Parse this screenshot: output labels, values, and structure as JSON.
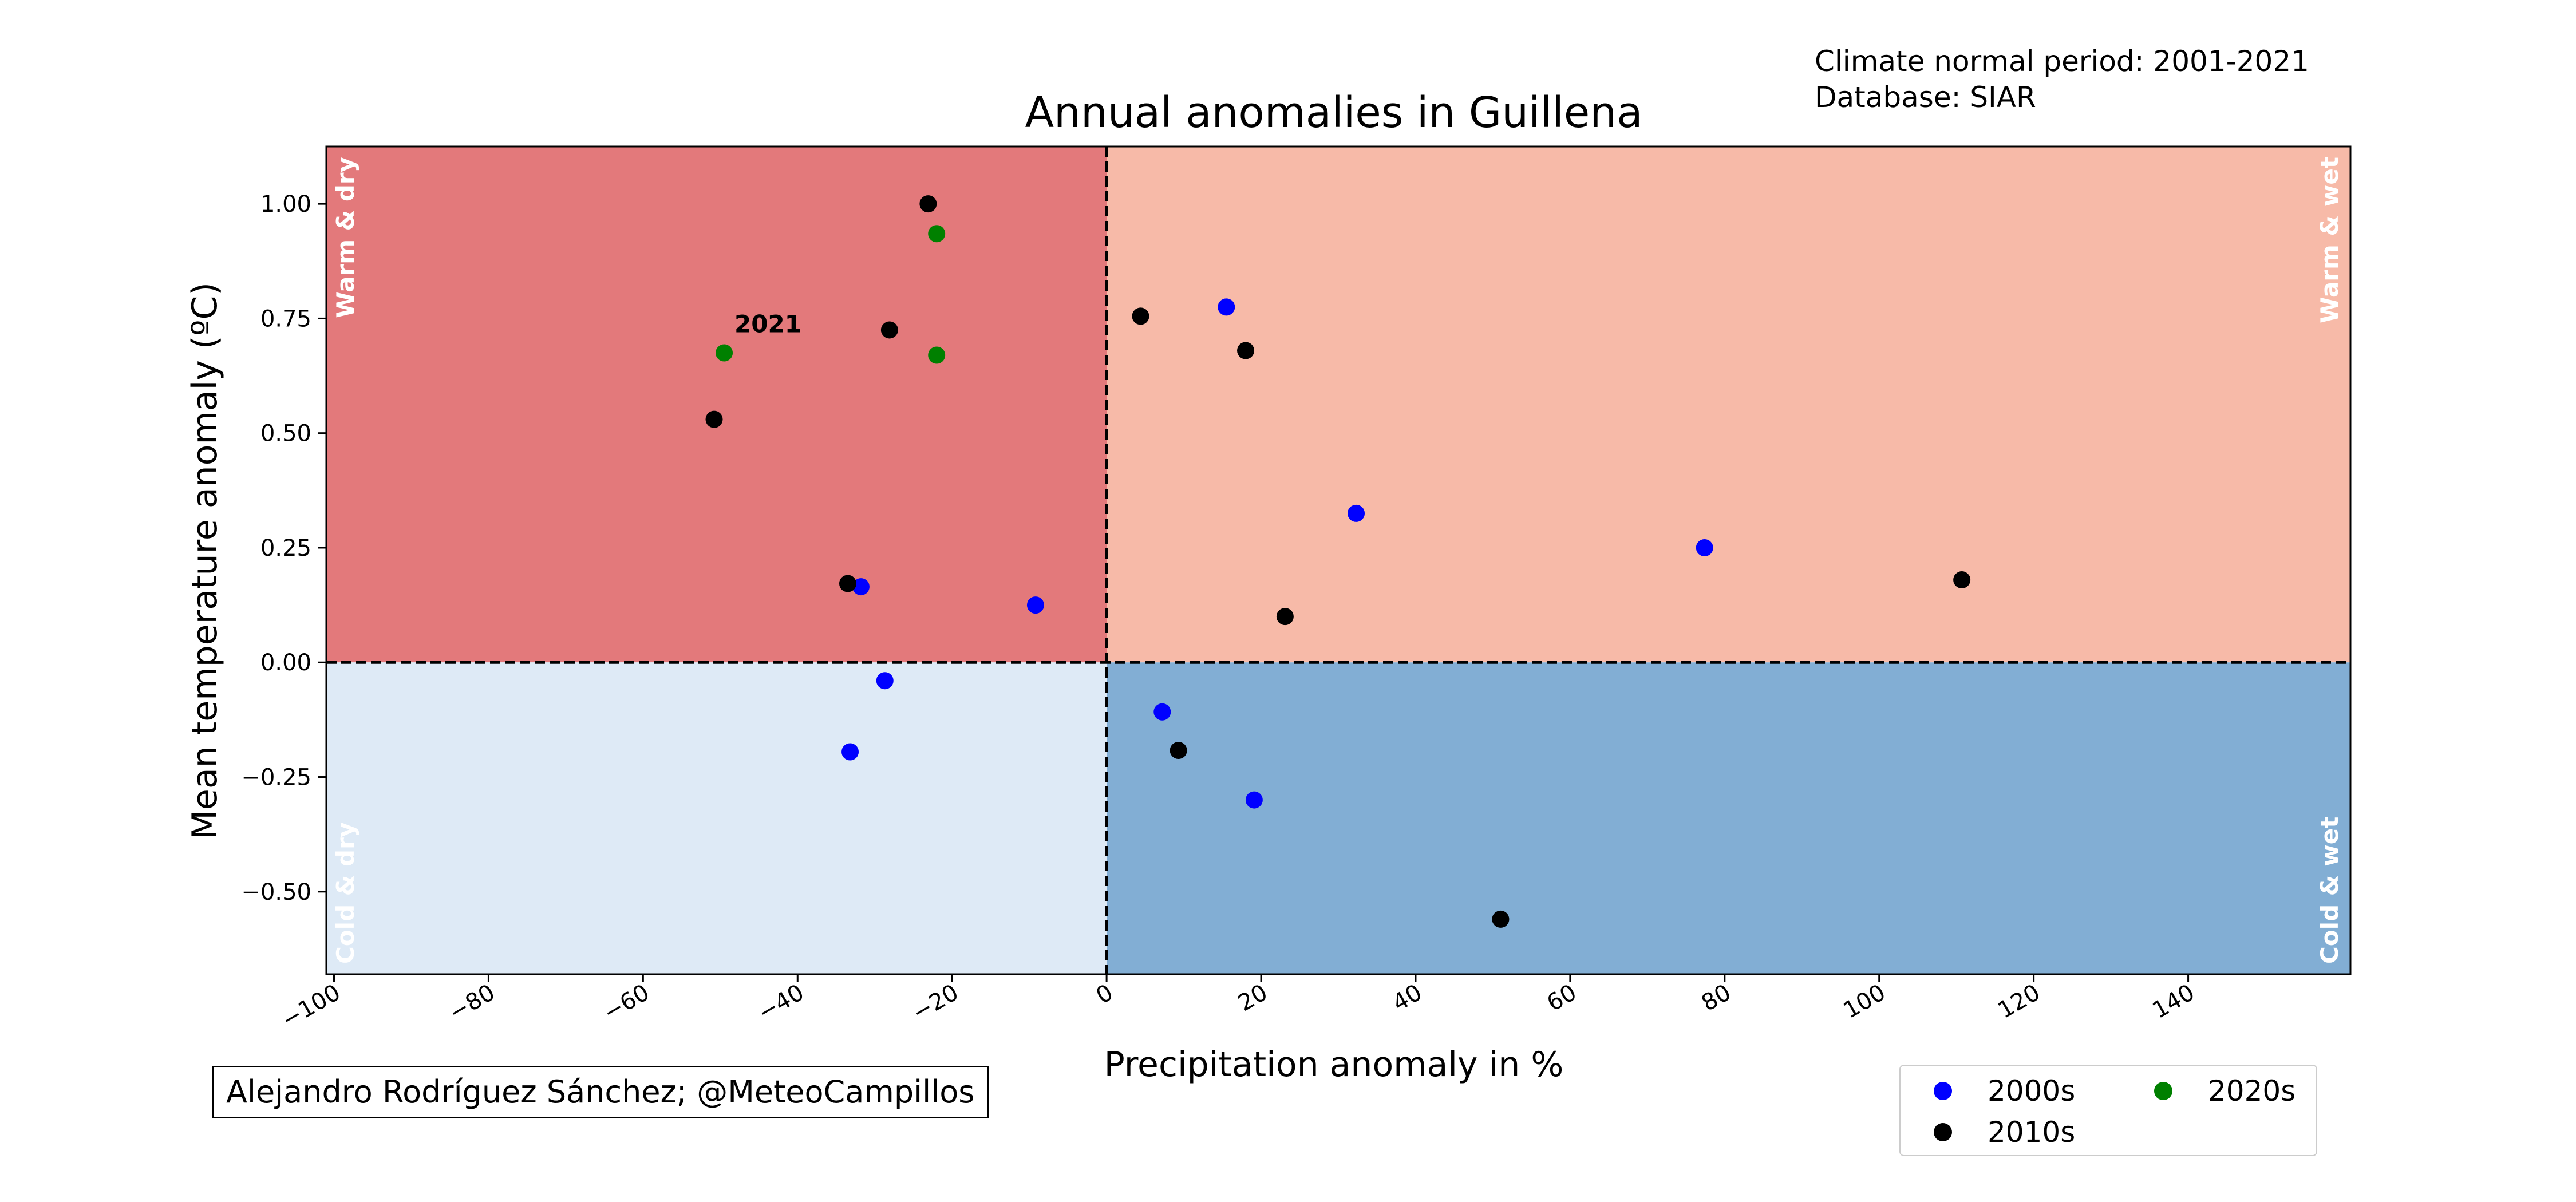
{
  "header": {
    "normal_period": "Climate normal period: 2001-2021",
    "database": "Database: SIAR"
  },
  "credit": "Alejandro Rodríguez Sánchez; @MeteoCampillos",
  "colors": {
    "warm_dry": "#e3797b",
    "warm_wet": "#f7baa8",
    "cold_dry": "#deeaf6",
    "cold_wet": "#82aed4",
    "quadrant_label": "#ffffff"
  },
  "chart_data": {
    "type": "scatter",
    "title": "Annual anomalies in Guillena",
    "xlabel": "Precipitation anomaly in %",
    "ylabel": "Mean temperature anomaly (ºC)",
    "xlim": [
      -101,
      161
    ],
    "ylim": [
      -0.68,
      1.125
    ],
    "xticks": [
      -100,
      -80,
      -60,
      -40,
      -20,
      0,
      20,
      40,
      60,
      80,
      100,
      120,
      140
    ],
    "xtick_labels": [
      "−100",
      "−80",
      "−60",
      "−40",
      "−20",
      "0",
      "20",
      "40",
      "60",
      "80",
      "100",
      "120",
      "140"
    ],
    "yticks": [
      -0.5,
      -0.25,
      0,
      0.25,
      0.5,
      0.75,
      1.0
    ],
    "ytick_labels": [
      "−0.50",
      "−0.25",
      "0.00",
      "0.25",
      "0.50",
      "0.75",
      "1.00"
    ],
    "quadrants": {
      "warm_dry": "Warm & dry",
      "warm_wet": "Warm & wet",
      "cold_dry": "Cold & dry",
      "cold_wet": "Cold & wet"
    },
    "series": [
      {
        "name": "2000s",
        "color": "#0000ff",
        "points": [
          [
            15.5,
            0.775
          ],
          [
            32.3,
            0.325
          ],
          [
            77.4,
            0.25
          ],
          [
            -31.8,
            0.165
          ],
          [
            -9.2,
            0.125
          ],
          [
            -28.7,
            -0.04
          ],
          [
            7.2,
            -0.108
          ],
          [
            -33.2,
            -0.195
          ],
          [
            19.1,
            -0.3
          ]
        ]
      },
      {
        "name": "2010s",
        "color": "#000000",
        "points": [
          [
            -23.1,
            1.0
          ],
          [
            4.4,
            0.755
          ],
          [
            -28.1,
            0.725
          ],
          [
            18.0,
            0.68
          ],
          [
            -50.8,
            0.53
          ],
          [
            -33.5,
            0.172
          ],
          [
            110.7,
            0.18
          ],
          [
            23.1,
            0.1
          ],
          [
            9.3,
            -0.192
          ],
          [
            51.0,
            -0.56
          ]
        ]
      },
      {
        "name": "2020s",
        "color": "#008000",
        "points": [
          [
            -22.0,
            0.935
          ],
          [
            -49.5,
            0.675
          ],
          [
            -22.0,
            0.67
          ]
        ]
      }
    ],
    "annotations": [
      {
        "text": "2021",
        "x": -49.5,
        "y": 0.675
      }
    ],
    "reference_lines": {
      "x": 0,
      "y": 0
    }
  }
}
